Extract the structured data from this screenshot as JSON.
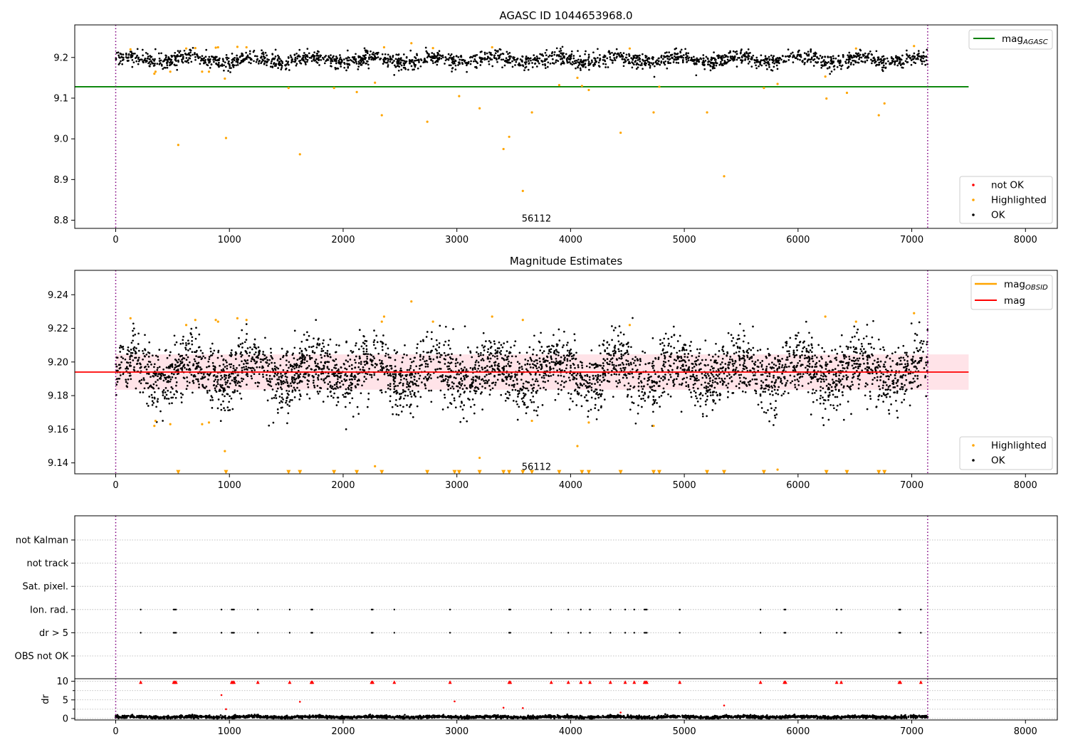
{
  "chart_data": [
    {
      "type": "scatter",
      "title": "AGASC ID 1044653968.0",
      "xlim": [
        -360,
        8280
      ],
      "ylim": [
        8.78,
        9.28
      ],
      "xticks": [
        0,
        1000,
        2000,
        3000,
        4000,
        5000,
        6000,
        7000,
        8000
      ],
      "xtick_labels": [
        "0",
        "1000",
        "2000",
        "3000",
        "4000",
        "5000",
        "6000",
        "7000",
        "8000"
      ],
      "yticks": [
        8.8,
        8.9,
        9.0,
        9.1,
        9.2
      ],
      "ytick_labels": [
        "8.8",
        "8.9",
        "9.0",
        "9.1",
        "9.2"
      ],
      "vlines": [
        0,
        7140
      ],
      "annotation": {
        "text": "56112",
        "x": 3700,
        "y": 8.8
      },
      "hline": {
        "name": "mag",
        "name_sub": "AGASC",
        "y": 9.128,
        "x_range": [
          -360,
          7500
        ],
        "color": "#008000"
      },
      "series": [
        {
          "name": "OK",
          "color": "#000000",
          "band": {
            "x_range": [
              0,
              7140
            ],
            "center": 9.195,
            "spread": 0.012,
            "points_per_100": 30
          }
        },
        {
          "name": "Highlighted",
          "color": "#ffa500",
          "x": [
            130,
            340,
            350,
            480,
            550,
            620,
            700,
            760,
            820,
            880,
            900,
            960,
            970,
            1070,
            1150,
            1520,
            1620,
            1920,
            2120,
            2280,
            2340,
            2360,
            2600,
            2740,
            2790,
            3020,
            3200,
            3310,
            3410,
            3460,
            3580,
            3660,
            3900,
            4060,
            4100,
            4160,
            4440,
            4520,
            4730,
            4780,
            5200,
            5350,
            5700,
            5820,
            6240,
            6250,
            6430,
            6510,
            6710,
            6760,
            7020
          ],
          "y": [
            9.22,
            9.16,
            9.165,
            9.165,
            8.985,
            9.222,
            9.223,
            9.165,
            9.165,
            9.224,
            9.225,
            9.148,
            9.002,
            9.226,
            9.225,
            9.125,
            8.962,
            9.125,
            9.115,
            9.138,
            9.058,
            9.225,
            9.235,
            9.042,
            9.223,
            9.105,
            9.075,
            9.225,
            8.975,
            9.005,
            8.872,
            9.065,
            9.132,
            9.15,
            9.13,
            9.12,
            9.015,
            9.222,
            9.065,
            9.128,
            9.065,
            8.908,
            9.125,
            9.135,
            9.153,
            9.099,
            9.113,
            9.222,
            9.058,
            9.087,
            9.228
          ]
        },
        {
          "name": "not OK",
          "color": "#ff0000",
          "x": [],
          "y": []
        }
      ],
      "legend_upper": [
        "mag"
      ],
      "legend_lower": [
        "not OK",
        "Highlighted",
        "OK"
      ]
    },
    {
      "type": "scatter",
      "title": "Magnitude Estimates",
      "xlim": [
        -360,
        8280
      ],
      "ylim": [
        9.1335,
        9.2545
      ],
      "xticks": [
        0,
        1000,
        2000,
        3000,
        4000,
        5000,
        6000,
        7000,
        8000
      ],
      "xtick_labels": [
        "0",
        "1000",
        "2000",
        "3000",
        "4000",
        "5000",
        "6000",
        "7000",
        "8000"
      ],
      "yticks": [
        9.14,
        9.16,
        9.18,
        9.2,
        9.22,
        9.24
      ],
      "ytick_labels": [
        "9.14",
        "9.16",
        "9.18",
        "9.20",
        "9.22",
        "9.24"
      ],
      "vlines": [
        0,
        7140
      ],
      "annotation": {
        "text": "56112",
        "x": 3700,
        "y": 9.1375
      },
      "band": {
        "y_low": 9.1835,
        "y_high": 9.2045,
        "x_range": [
          0,
          7500
        ],
        "color": "#ffc0cb"
      },
      "hline": {
        "name": "mag",
        "y": 9.194,
        "x_range": [
          -360,
          7500
        ],
        "color": "#ff0000"
      },
      "obsid_line": {
        "name": "mag",
        "name_sub": "OBSID",
        "color": "#ffa500"
      },
      "series": [
        {
          "name": "OK",
          "color": "#000000",
          "band": {
            "x_range": [
              0,
              7140
            ],
            "center": 9.194,
            "spread": 0.012,
            "points_per_100": 55
          }
        },
        {
          "name": "Highlighted",
          "color": "#ffa500",
          "x": [
            130,
            340,
            350,
            480,
            620,
            700,
            760,
            820,
            880,
            900,
            960,
            1070,
            1150,
            2280,
            2340,
            2360,
            2600,
            2790,
            3200,
            3310,
            3580,
            3660,
            4060,
            4160,
            4520,
            4730,
            5820,
            6240,
            6510,
            7020
          ],
          "y": [
            9.226,
            9.162,
            9.165,
            9.163,
            9.222,
            9.225,
            9.163,
            9.164,
            9.225,
            9.224,
            9.147,
            9.226,
            9.225,
            9.138,
            9.224,
            9.227,
            9.236,
            9.224,
            9.143,
            9.227,
            9.225,
            9.165,
            9.15,
            9.164,
            9.222,
            9.162,
            9.136,
            9.227,
            9.224,
            9.229
          ]
        },
        {
          "name": "Highlighted (off-scale)",
          "color": "#ffa500",
          "marker": "triangle-down",
          "x": [
            550,
            970,
            1520,
            1620,
            1920,
            2120,
            2340,
            2740,
            2980,
            3020,
            3200,
            3410,
            3460,
            3580,
            3660,
            3900,
            4100,
            4160,
            4440,
            4730,
            4780,
            5200,
            5350,
            5700,
            6250,
            6430,
            6710,
            6760
          ],
          "y": [
            9.1345,
            9.1345,
            9.1345,
            9.1345,
            9.1345,
            9.1345,
            9.1345,
            9.1345,
            9.1345,
            9.1345,
            9.1345,
            9.1345,
            9.1345,
            9.1345,
            9.1345,
            9.1345,
            9.1345,
            9.1345,
            9.1345,
            9.1345,
            9.1345,
            9.1345,
            9.1345,
            9.1345,
            9.1345,
            9.1345,
            9.1345,
            9.1345
          ]
        }
      ],
      "legend_upper": [
        "mag",
        "mag"
      ],
      "legend_lower": [
        "Highlighted",
        "OK"
      ]
    },
    {
      "type": "scatter",
      "title": "",
      "xlim": [
        -360,
        8280
      ],
      "flag_rows": [
        "not Kalman",
        "not track",
        "Sat. pixel.",
        "Ion. rad.",
        "dr > 5",
        "OBS not OK"
      ],
      "vlines": [
        0,
        7140
      ],
      "flags": [
        {
          "row": "Ion. rad.",
          "x": [
            220,
            510,
            520,
            530,
            930,
            1020,
            1030,
            1040,
            1250,
            1530,
            1720,
            1730,
            2250,
            2260,
            2450,
            2940,
            3460,
            3470,
            3830,
            3980,
            4090,
            4170,
            4350,
            4480,
            4560,
            4650,
            4660,
            4670,
            4960,
            5670,
            5880,
            5890,
            6340,
            6380,
            6890,
            6900,
            7080
          ]
        },
        {
          "row": "dr > 5",
          "x": [
            220,
            510,
            520,
            530,
            930,
            1020,
            1030,
            1040,
            1250,
            1530,
            1720,
            1730,
            2250,
            2260,
            2450,
            2940,
            3460,
            3470,
            3830,
            3980,
            4090,
            4170,
            4350,
            4480,
            4560,
            4650,
            4660,
            4670,
            4960,
            5670,
            5880,
            5890,
            6340,
            6380,
            6890,
            6900,
            7080
          ]
        }
      ]
    },
    {
      "type": "scatter",
      "title": "",
      "ylabel": "dr",
      "xlim": [
        -360,
        8280
      ],
      "ylim": [
        -0.4,
        10.7
      ],
      "xticks": [
        0,
        1000,
        2000,
        3000,
        4000,
        5000,
        6000,
        7000,
        8000
      ],
      "xtick_labels": [
        "0",
        "1000",
        "2000",
        "3000",
        "4000",
        "5000",
        "6000",
        "7000",
        "8000"
      ],
      "yticks": [
        0,
        5,
        10
      ],
      "ytick_labels": [
        "0",
        "5",
        "10"
      ],
      "vlines": [
        0,
        7140
      ],
      "series": [
        {
          "name": "dr",
          "color": "#000000",
          "band": {
            "x_range": [
              0,
              7140
            ],
            "center": 0.4,
            "spread": 0.25,
            "points_per_100": 40
          }
        },
        {
          "name": "dr (large)",
          "color": "#ff0000",
          "x": [
            930,
            970,
            1620,
            2980,
            3410,
            3580,
            4440,
            5350
          ],
          "y": [
            6.3,
            2.5,
            4.5,
            4.6,
            2.9,
            2.8,
            1.6,
            3.5
          ]
        },
        {
          "name": "dr (clipped)",
          "color": "#ff0000",
          "marker": "triangle-up",
          "x": [
            220,
            510,
            520,
            530,
            1020,
            1030,
            1040,
            1250,
            1530,
            1720,
            1730,
            2250,
            2260,
            2450,
            2940,
            3460,
            3470,
            3830,
            3980,
            4090,
            4170,
            4350,
            4480,
            4560,
            4650,
            4660,
            4670,
            4960,
            5670,
            5880,
            5890,
            6340,
            6380,
            6890,
            6900,
            7080
          ],
          "y": [
            9.8,
            9.8,
            9.8,
            9.8,
            9.8,
            9.8,
            9.8,
            9.8,
            9.8,
            9.8,
            9.8,
            9.8,
            9.8,
            9.8,
            9.8,
            9.8,
            9.8,
            9.8,
            9.8,
            9.8,
            9.8,
            9.8,
            9.8,
            9.8,
            9.8,
            9.8,
            9.8,
            9.8,
            9.8,
            9.8,
            9.8,
            9.8,
            9.8,
            9.8,
            9.8,
            9.8
          ]
        }
      ]
    }
  ]
}
